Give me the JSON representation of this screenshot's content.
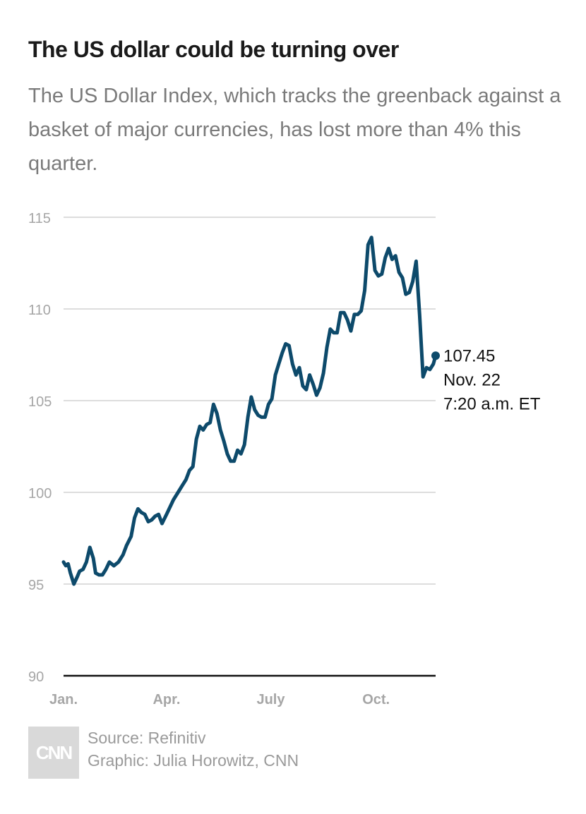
{
  "header": {
    "title": "The US dollar could be turning over",
    "subtitle": "The US Dollar Index, which tracks the greenback against a basket of major currencies, has lost more than 4% this quarter."
  },
  "footer": {
    "logo_text": "CNN",
    "source": "Source: Refinitiv",
    "graphic": "Graphic: Julia Horowitz, CNN"
  },
  "colors": {
    "line": "#0d4a6b",
    "grid": "#dddddd",
    "baseline": "#111111"
  },
  "chart_data": {
    "type": "line",
    "title": "The US dollar could be turning over",
    "xlabel": "",
    "ylabel": "",
    "ylim": [
      90,
      115
    ],
    "yticks": [
      90,
      95,
      100,
      105,
      110,
      115
    ],
    "xticks": [
      {
        "label": "Jan.",
        "date": "2022-01-01"
      },
      {
        "label": "Apr.",
        "date": "2022-04-01"
      },
      {
        "label": "July",
        "date": "2022-07-01"
      },
      {
        "label": "Oct.",
        "date": "2022-10-01"
      }
    ],
    "grid": true,
    "annotation": {
      "value": "107.45",
      "date_label": "Nov. 22",
      "time_label": "7:20 a.m. ET"
    },
    "series": [
      {
        "x": [
          "2022-01-01",
          "2022-01-03",
          "2022-01-05",
          "2022-01-07",
          "2022-01-10",
          "2022-01-13",
          "2022-01-15",
          "2022-01-18",
          "2022-01-21",
          "2022-01-24",
          "2022-01-27",
          "2022-01-29",
          "2022-02-01",
          "2022-02-04",
          "2022-02-07",
          "2022-02-10",
          "2022-02-14",
          "2022-02-18",
          "2022-02-22",
          "2022-02-25",
          "2022-03-01",
          "2022-03-04",
          "2022-03-07",
          "2022-03-10",
          "2022-03-13",
          "2022-03-16",
          "2022-03-19",
          "2022-03-22",
          "2022-03-25",
          "2022-03-28",
          "2022-04-01",
          "2022-04-04",
          "2022-04-07",
          "2022-04-11",
          "2022-04-14",
          "2022-04-18",
          "2022-04-21",
          "2022-04-24",
          "2022-04-27",
          "2022-04-30",
          "2022-05-03",
          "2022-05-06",
          "2022-05-09",
          "2022-05-12",
          "2022-05-15",
          "2022-05-18",
          "2022-05-21",
          "2022-05-24",
          "2022-05-27",
          "2022-05-30",
          "2022-06-02",
          "2022-06-05",
          "2022-06-08",
          "2022-06-11",
          "2022-06-14",
          "2022-06-17",
          "2022-06-20",
          "2022-06-23",
          "2022-06-26",
          "2022-06-29",
          "2022-07-02",
          "2022-07-05",
          "2022-07-08",
          "2022-07-11",
          "2022-07-14",
          "2022-07-17",
          "2022-07-20",
          "2022-07-23",
          "2022-07-26",
          "2022-07-29",
          "2022-08-01",
          "2022-08-04",
          "2022-08-07",
          "2022-08-10",
          "2022-08-13",
          "2022-08-16",
          "2022-08-19",
          "2022-08-22",
          "2022-08-25",
          "2022-08-28",
          "2022-08-31",
          "2022-09-03",
          "2022-09-06",
          "2022-09-09",
          "2022-09-12",
          "2022-09-15",
          "2022-09-18",
          "2022-09-21",
          "2022-09-24",
          "2022-09-27",
          "2022-09-30",
          "2022-10-03",
          "2022-10-06",
          "2022-10-09",
          "2022-10-12",
          "2022-10-15",
          "2022-10-18",
          "2022-10-21",
          "2022-10-24",
          "2022-10-27",
          "2022-10-30",
          "2022-11-02",
          "2022-11-05",
          "2022-11-08",
          "2022-11-11",
          "2022-11-14",
          "2022-11-17",
          "2022-11-20",
          "2022-11-22"
        ],
        "values": [
          96.2,
          96.0,
          96.1,
          95.6,
          95.0,
          95.4,
          95.7,
          95.8,
          96.2,
          97.0,
          96.4,
          95.6,
          95.5,
          95.5,
          95.8,
          96.2,
          96.0,
          96.2,
          96.6,
          97.1,
          97.6,
          98.6,
          99.1,
          98.9,
          98.8,
          98.4,
          98.5,
          98.7,
          98.8,
          98.3,
          98.8,
          99.2,
          99.6,
          100.0,
          100.3,
          100.7,
          101.2,
          101.4,
          102.9,
          103.6,
          103.4,
          103.7,
          103.8,
          104.8,
          104.3,
          103.4,
          102.8,
          102.1,
          101.7,
          101.7,
          102.3,
          102.1,
          102.6,
          104.1,
          105.2,
          104.5,
          104.2,
          104.1,
          104.1,
          104.8,
          105.1,
          106.4,
          107.0,
          107.6,
          108.1,
          108.0,
          107.0,
          106.4,
          106.8,
          105.8,
          105.6,
          106.4,
          105.9,
          105.3,
          105.7,
          106.5,
          107.9,
          108.9,
          108.7,
          108.7,
          109.8,
          109.8,
          109.4,
          108.8,
          109.7,
          109.7,
          109.9,
          111.0,
          113.5,
          113.9,
          112.1,
          111.8,
          111.9,
          112.8,
          113.3,
          112.7,
          112.9,
          112.0,
          111.7,
          110.8,
          110.9,
          111.5,
          112.6,
          109.7,
          106.3,
          106.8,
          106.7,
          107.0,
          107.45
        ]
      }
    ]
  }
}
